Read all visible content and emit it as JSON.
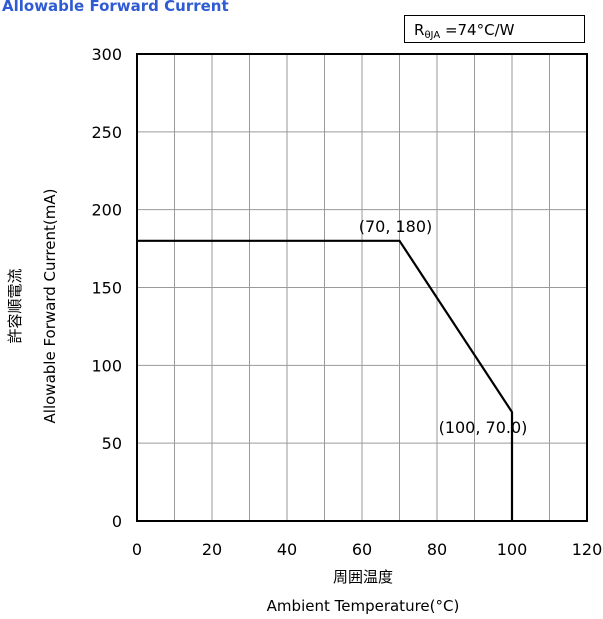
{
  "title": "Allowable Forward Current",
  "thermal_resistance": {
    "symbol": "R",
    "subscript": "θJA",
    "value_text": " =74°C/W"
  },
  "chart_data": {
    "type": "line",
    "title": "Allowable Forward Current",
    "xlabel_jp": "周囲温度",
    "xlabel": "Ambient Temperature(°C)",
    "ylabel_jp": "許容順電流",
    "ylabel": "Allowable Forward Current(mA)",
    "xlim": [
      0,
      120
    ],
    "ylim": [
      0,
      300
    ],
    "xticks": [
      0,
      20,
      40,
      60,
      80,
      100,
      120
    ],
    "yticks": [
      0,
      50,
      100,
      150,
      200,
      250,
      300
    ],
    "x_minor_step": 10,
    "grid": true,
    "series": [
      {
        "x": [
          0,
          70,
          100,
          100
        ],
        "y": [
          180,
          180,
          70,
          0
        ]
      }
    ],
    "annotations": [
      {
        "text": "(70, 180)",
        "x": 70,
        "y": 180
      },
      {
        "text": "(100, 70.0)",
        "x": 100,
        "y": 70
      }
    ]
  }
}
